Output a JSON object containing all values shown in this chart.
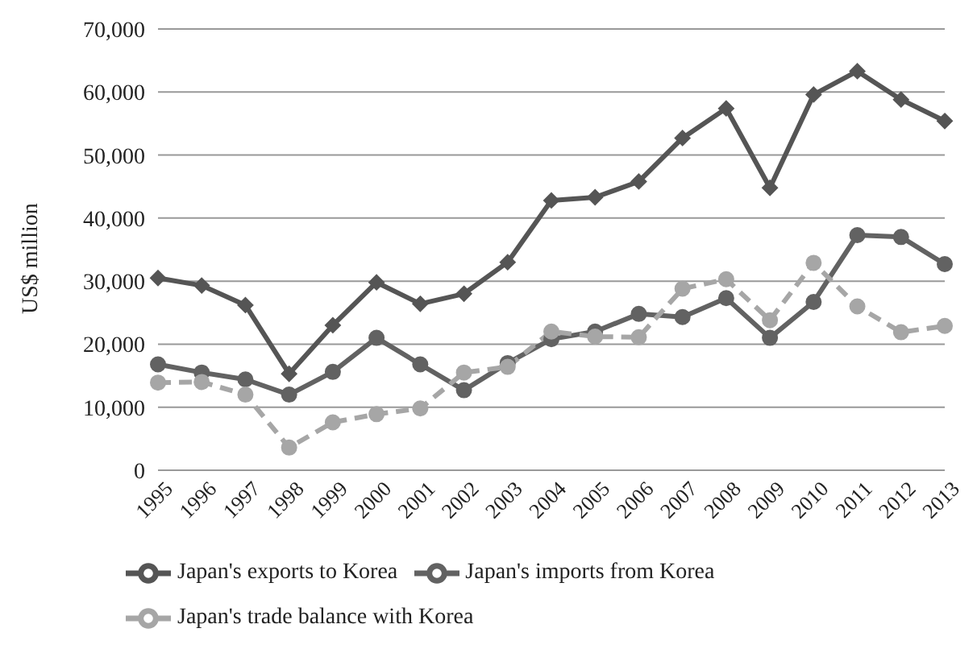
{
  "chart_data": {
    "type": "line",
    "ylabel": "US$ million",
    "categories": [
      "1995",
      "1996",
      "1997",
      "1998",
      "1999",
      "2000",
      "2001",
      "2002",
      "2003",
      "2004",
      "2005",
      "2006",
      "2007",
      "2008",
      "2009",
      "2010",
      "2011",
      "2012",
      "2013"
    ],
    "series": [
      {
        "name": "Japan's exports to Korea",
        "color": "#555555",
        "marker": "diamond",
        "line_style": "solid",
        "values": [
          30500,
          29300,
          26200,
          15300,
          23000,
          29800,
          26400,
          28000,
          33000,
          42800,
          43300,
          45800,
          52700,
          57400,
          44800,
          59600,
          63300,
          58800,
          55400
        ]
      },
      {
        "name": "Japan's imports from Korea",
        "color": "#626262",
        "marker": "circle",
        "line_style": "solid",
        "values": [
          16800,
          15500,
          14400,
          12000,
          15600,
          21000,
          16800,
          12700,
          17000,
          20800,
          22000,
          24800,
          24300,
          27300,
          21000,
          26700,
          37300,
          37000,
          32700
        ]
      },
      {
        "name": "Japan's trade balance with Korea",
        "color": "#a6a6a6",
        "marker": "circle",
        "line_style": "dashed",
        "values": [
          13900,
          14000,
          12000,
          3600,
          7600,
          8900,
          9800,
          15500,
          16400,
          22000,
          21200,
          21100,
          28800,
          30300,
          23800,
          32900,
          26000,
          21900,
          22900
        ]
      }
    ],
    "ylim": [
      0,
      70000
    ],
    "yticks": [
      0,
      {
        "value": 10000,
        "label": "10,000"
      },
      {
        "value": 20000,
        "label": "20,000"
      },
      {
        "value": 30000,
        "label": "30,000"
      },
      {
        "value": 40000,
        "label": "40,000"
      },
      {
        "value": 50000,
        "label": "50,000"
      },
      {
        "value": 60000,
        "label": "60,000"
      },
      {
        "value": 70000,
        "label": "70,000"
      }
    ],
    "grid": "y",
    "legend": "bottom"
  }
}
